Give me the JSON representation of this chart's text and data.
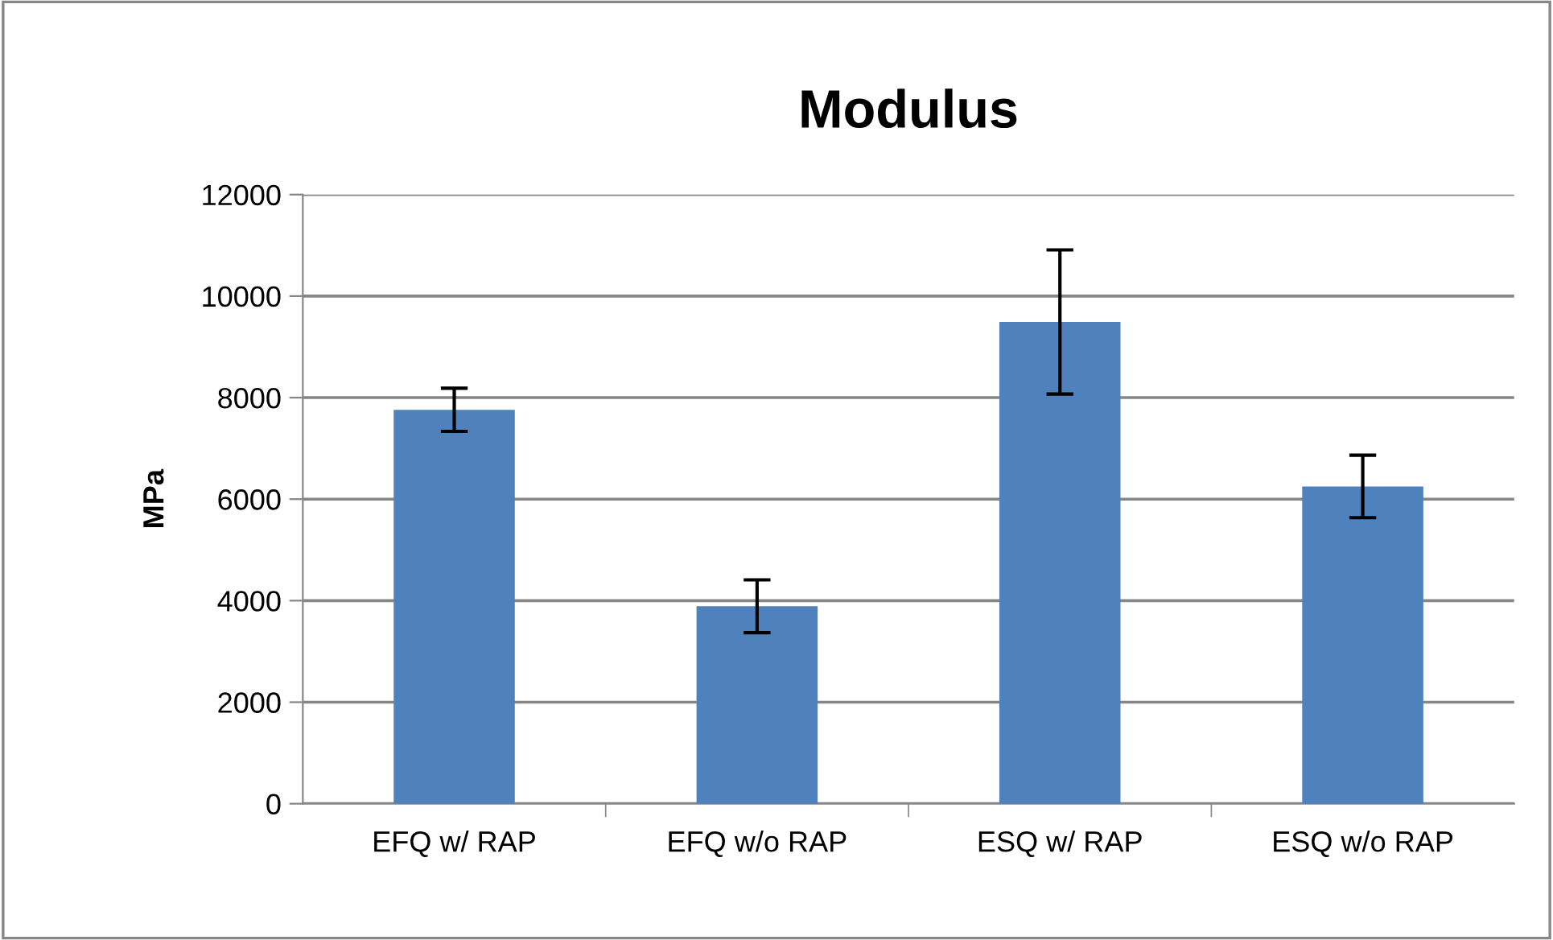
{
  "chart_data": {
    "type": "bar",
    "title": "Modulus",
    "ylabel": "MPa",
    "categories": [
      "EFQ w/ RAP",
      "EFQ w/o RAP",
      "ESQ w/ RAP",
      "ESQ w/o RAP"
    ],
    "values": [
      7760,
      3890,
      9490,
      6250
    ],
    "errors": [
      425,
      520,
      1420,
      615
    ],
    "color": "#4f81bd",
    "ylim": [
      0,
      12000
    ],
    "yticks": [
      0,
      2000,
      4000,
      6000,
      8000,
      10000,
      12000
    ],
    "grid": "y"
  }
}
